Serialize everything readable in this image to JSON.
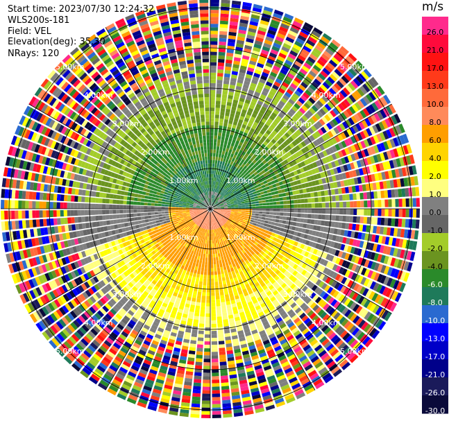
{
  "header": {
    "start_time": "Start time: 2023/07/30 12:24:32",
    "instrument": "WLS200s-181",
    "field": "Field: VEL",
    "elevation": "Elevation(deg): 35.30",
    "nrays": "NRays: 120"
  },
  "colorbar": {
    "unit": "m/s",
    "ticks": [
      "26.0",
      "21.0",
      "17.0",
      "13.0",
      "10.0",
      "8.0",
      "6.0",
      "4.0",
      "2.0",
      "1.0",
      "0.0",
      "-1.0",
      "-2.0",
      "-4.0",
      "-6.0",
      "-8.0",
      "-10.0",
      "-13.0",
      "-17.0",
      "-21.0",
      "-26.0",
      "-30.0"
    ],
    "colors": [
      "#ff2a8c",
      "#ff0a3c",
      "#ff1212",
      "#ff3a1a",
      "#ff6a3a",
      "#ff8a5a",
      "#ff9e00",
      "#ffd400",
      "#ffff00",
      "#ffff80",
      "#808080",
      "#666666",
      "#a3cc2a",
      "#6b9420",
      "#2a8a2a",
      "#1e7a5a",
      "#2a6ad0",
      "#0000ff",
      "#0000c8",
      "#00008a",
      "#1a1a5a",
      "#0a0a3a"
    ]
  },
  "range_rings": [
    "1.00km",
    "2.00km",
    "3.00km",
    "4.00km",
    "5.00km"
  ]
}
